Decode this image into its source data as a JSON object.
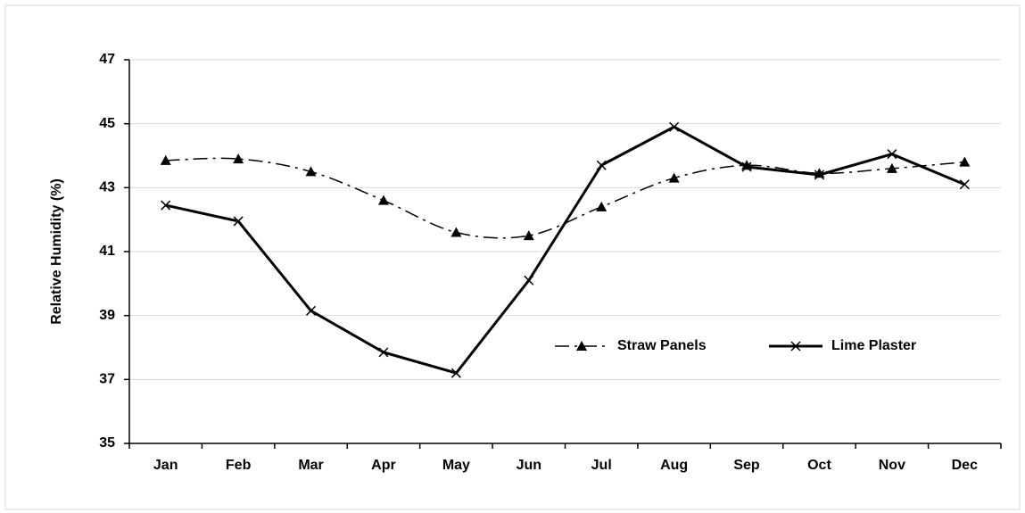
{
  "chart_data": {
    "type": "line",
    "y_label": "Relative Humidity (%)",
    "categories": [
      "Jan",
      "Feb",
      "Mar",
      "Apr",
      "May",
      "Jun",
      "Jul",
      "Aug",
      "Sep",
      "Oct",
      "Nov",
      "Dec"
    ],
    "series": [
      {
        "name": "Straw Panels",
        "color": "#000000",
        "line_style": "dash-dot",
        "smooth": true,
        "marker": "triangle",
        "line_width": 1.5,
        "values": [
          43.85,
          43.9,
          43.5,
          42.6,
          41.6,
          41.5,
          42.4,
          43.3,
          43.7,
          43.45,
          43.6,
          43.8
        ]
      },
      {
        "name": "Lime Plaster",
        "color": "#000000",
        "line_style": "solid",
        "smooth": false,
        "marker": "x",
        "line_width": 3,
        "values": [
          42.45,
          41.95,
          39.15,
          37.85,
          37.2,
          40.1,
          43.7,
          44.9,
          43.65,
          43.4,
          44.05,
          43.1
        ]
      }
    ],
    "ylim": [
      35,
      47
    ],
    "yticks": [
      35,
      37,
      39,
      41,
      43,
      45,
      47
    ],
    "grid": true,
    "legend": "center-right"
  }
}
